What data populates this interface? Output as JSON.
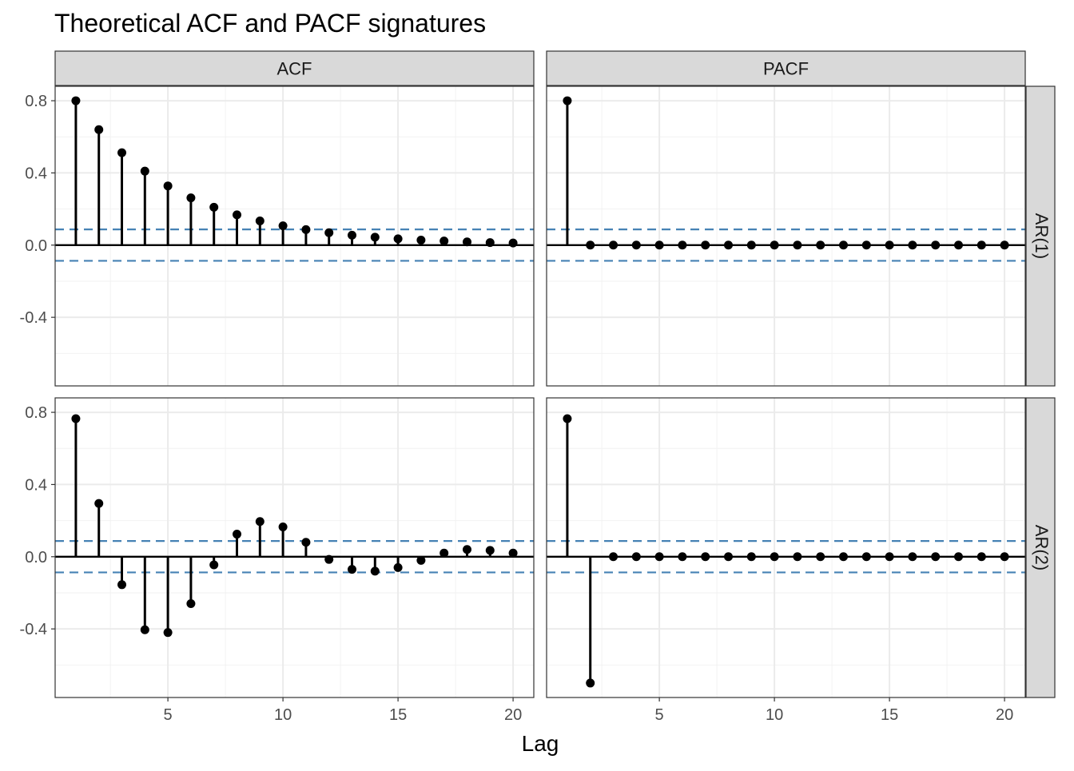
{
  "chart_data": {
    "type": "lollipop-facet",
    "title": "Theoretical ACF and PACF signatures",
    "xlabel": "Lag",
    "ylabel": "",
    "columns": [
      "ACF",
      "PACF"
    ],
    "rows": [
      "AR(1)",
      "AR(2)"
    ],
    "x_ticks": [
      5,
      10,
      15,
      20
    ],
    "y_ticks": [
      0.8,
      0.4,
      0.0,
      -0.4
    ],
    "y_tick_labels": [
      "0.8",
      "0.4",
      "0.0",
      "-0.4"
    ],
    "ylim": [
      -0.78,
      0.88
    ],
    "xlim": [
      0.1,
      20.9
    ],
    "significance_band": [
      0.087,
      -0.087
    ],
    "band_color": "#4682B4",
    "stem_color": "#000000",
    "strip_fill": "#D9D9D9",
    "lags": [
      1,
      2,
      3,
      4,
      5,
      6,
      7,
      8,
      9,
      10,
      11,
      12,
      13,
      14,
      15,
      16,
      17,
      18,
      19,
      20
    ],
    "panels": [
      {
        "row": "AR(1)",
        "col": "ACF",
        "values": [
          0.8,
          0.64,
          0.512,
          0.41,
          0.328,
          0.262,
          0.21,
          0.168,
          0.134,
          0.107,
          0.086,
          0.069,
          0.055,
          0.044,
          0.035,
          0.028,
          0.023,
          0.018,
          0.014,
          0.012
        ]
      },
      {
        "row": "AR(1)",
        "col": "PACF",
        "values": [
          0.8,
          0,
          0,
          0,
          0,
          0,
          0,
          0,
          0,
          0,
          0,
          0,
          0,
          0,
          0,
          0,
          0,
          0,
          0,
          0
        ]
      },
      {
        "row": "AR(2)",
        "col": "ACF",
        "values": [
          0.765,
          0.295,
          -0.155,
          -0.405,
          -0.42,
          -0.26,
          -0.045,
          0.125,
          0.195,
          0.165,
          0.08,
          -0.015,
          -0.07,
          -0.08,
          -0.06,
          -0.02,
          0.02,
          0.04,
          0.035,
          0.02
        ]
      },
      {
        "row": "AR(2)",
        "col": "PACF",
        "values": [
          0.765,
          -0.7,
          0,
          0,
          0,
          0,
          0,
          0,
          0,
          0,
          0,
          0,
          0,
          0,
          0,
          0,
          0,
          0,
          0,
          0
        ]
      }
    ]
  }
}
